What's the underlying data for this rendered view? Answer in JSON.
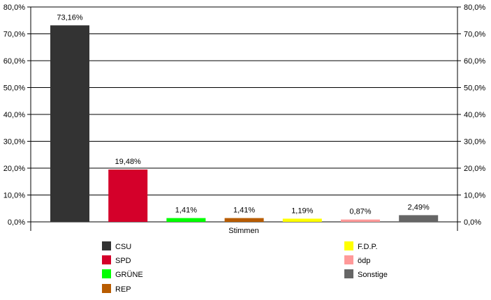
{
  "chart_data": {
    "type": "bar",
    "xlabel": "Stimmen",
    "categories": [
      "CSU",
      "SPD",
      "GRÜNE",
      "REP",
      "F.D.P.",
      "ödp",
      "Sonstige"
    ],
    "values": [
      73.16,
      19.48,
      1.41,
      1.41,
      1.19,
      0.87,
      2.49
    ],
    "value_labels": [
      "73,16%",
      "19,48%",
      "1,41%",
      "1,41%",
      "1,19%",
      "0,87%",
      "2,49%"
    ],
    "colors": [
      "#333333",
      "#d4002a",
      "#00ff00",
      "#b85c00",
      "#ffff00",
      "#ff9999",
      "#666666"
    ],
    "ylim": [
      0,
      80
    ],
    "yticks": [
      0,
      10,
      20,
      30,
      40,
      50,
      60,
      70,
      80
    ],
    "ytick_labels": [
      "0,0%",
      "10,0%",
      "20,0%",
      "30,0%",
      "40,0%",
      "50,0%",
      "60,0%",
      "70,0%",
      "80,0%"
    ],
    "grid": true,
    "legend_placement": "bottom"
  }
}
